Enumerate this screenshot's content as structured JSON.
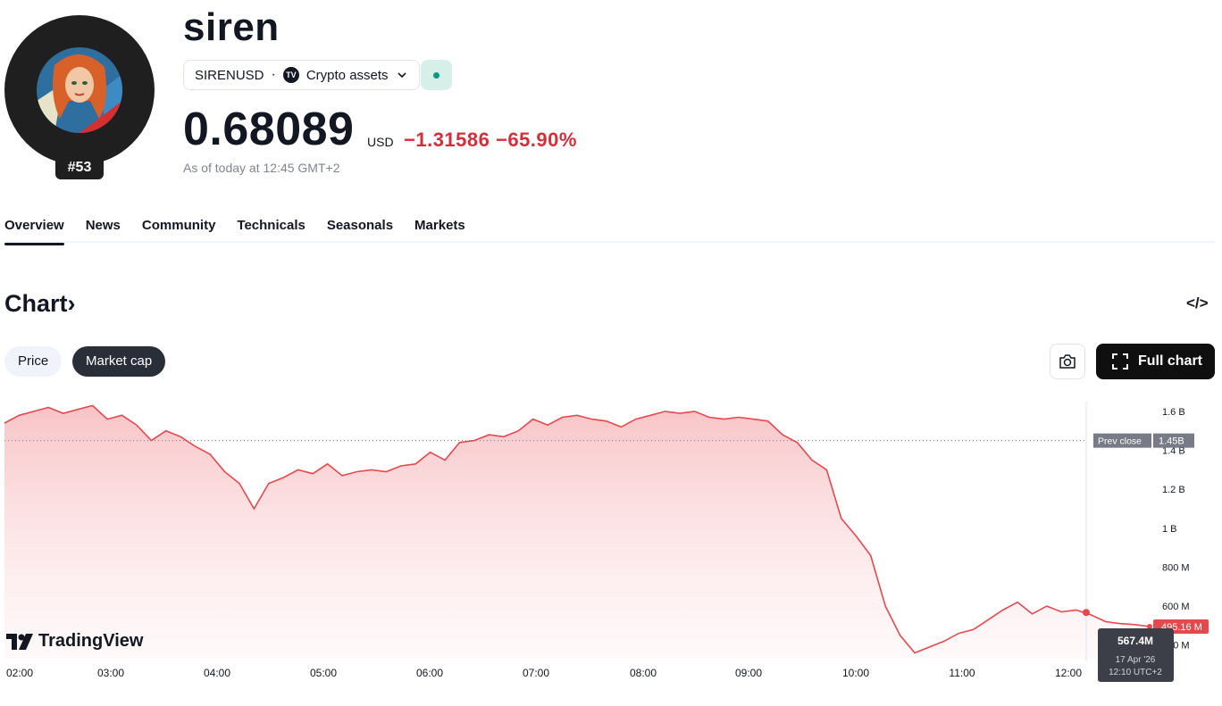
{
  "header": {
    "title": "siren",
    "rank": "#53",
    "symbol": "SIRENUSD",
    "separator": "·",
    "category": "Crypto assets",
    "price": "0.68089",
    "currency": "USD",
    "change": "−1.31586 −65.90%",
    "as_of": "As of today at 12:45 GMT+2",
    "status_color": "#089981"
  },
  "tabs": [
    "Overview",
    "News",
    "Community",
    "Technicals",
    "Seasonals",
    "Markets"
  ],
  "section": {
    "title": "Chart",
    "chevron": "›",
    "embed_icon": "</>"
  },
  "toggles": {
    "price": "Price",
    "market_cap": "Market cap",
    "active": "Market cap"
  },
  "actions": {
    "snapshot_icon": "camera-icon",
    "full_chart": "Full chart"
  },
  "branding": {
    "logo_text": "TradingView"
  },
  "chart_data": {
    "type": "area",
    "x_ticks": [
      "02:00",
      "03:00",
      "04:00",
      "05:00",
      "06:00",
      "07:00",
      "08:00",
      "09:00",
      "10:00",
      "11:00",
      "12:00"
    ],
    "y_ticks": [
      "1.6 B",
      "1.4 B",
      "1.2 B",
      "1 B",
      "800 M",
      "600 M",
      "400 M"
    ],
    "ylim_millions": [
      330,
      1650
    ],
    "series": [
      {
        "values_millions": [
          1540,
          1580,
          1600,
          1620,
          1590,
          1610,
          1630,
          1560,
          1580,
          1530,
          1450,
          1500,
          1470,
          1420,
          1380,
          1290,
          1230,
          1100,
          1230,
          1260,
          1300,
          1280,
          1330,
          1270,
          1290,
          1300,
          1290,
          1320,
          1330,
          1390,
          1350,
          1440,
          1450,
          1480,
          1470,
          1500,
          1560,
          1530,
          1570,
          1580,
          1560,
          1550,
          1520,
          1560,
          1580,
          1600,
          1590,
          1600,
          1570,
          1560,
          1570,
          1560,
          1550,
          1480,
          1440,
          1350,
          1300,
          1050,
          960,
          860,
          600,
          450,
          360,
          390,
          420,
          460,
          480,
          530,
          580,
          620,
          560,
          600,
          570,
          580,
          555,
          520,
          510,
          505,
          495.16
        ]
      }
    ],
    "prev_close_label": "Prev close",
    "prev_close_value": "1.45B",
    "prev_close_millions": 1450,
    "last_value_label": "495.16 M",
    "tooltip": {
      "value": "567.4M",
      "date": "17 Apr '26",
      "time": "12:10 UTC+2"
    },
    "line_color": "#e5484d",
    "grid": false
  }
}
